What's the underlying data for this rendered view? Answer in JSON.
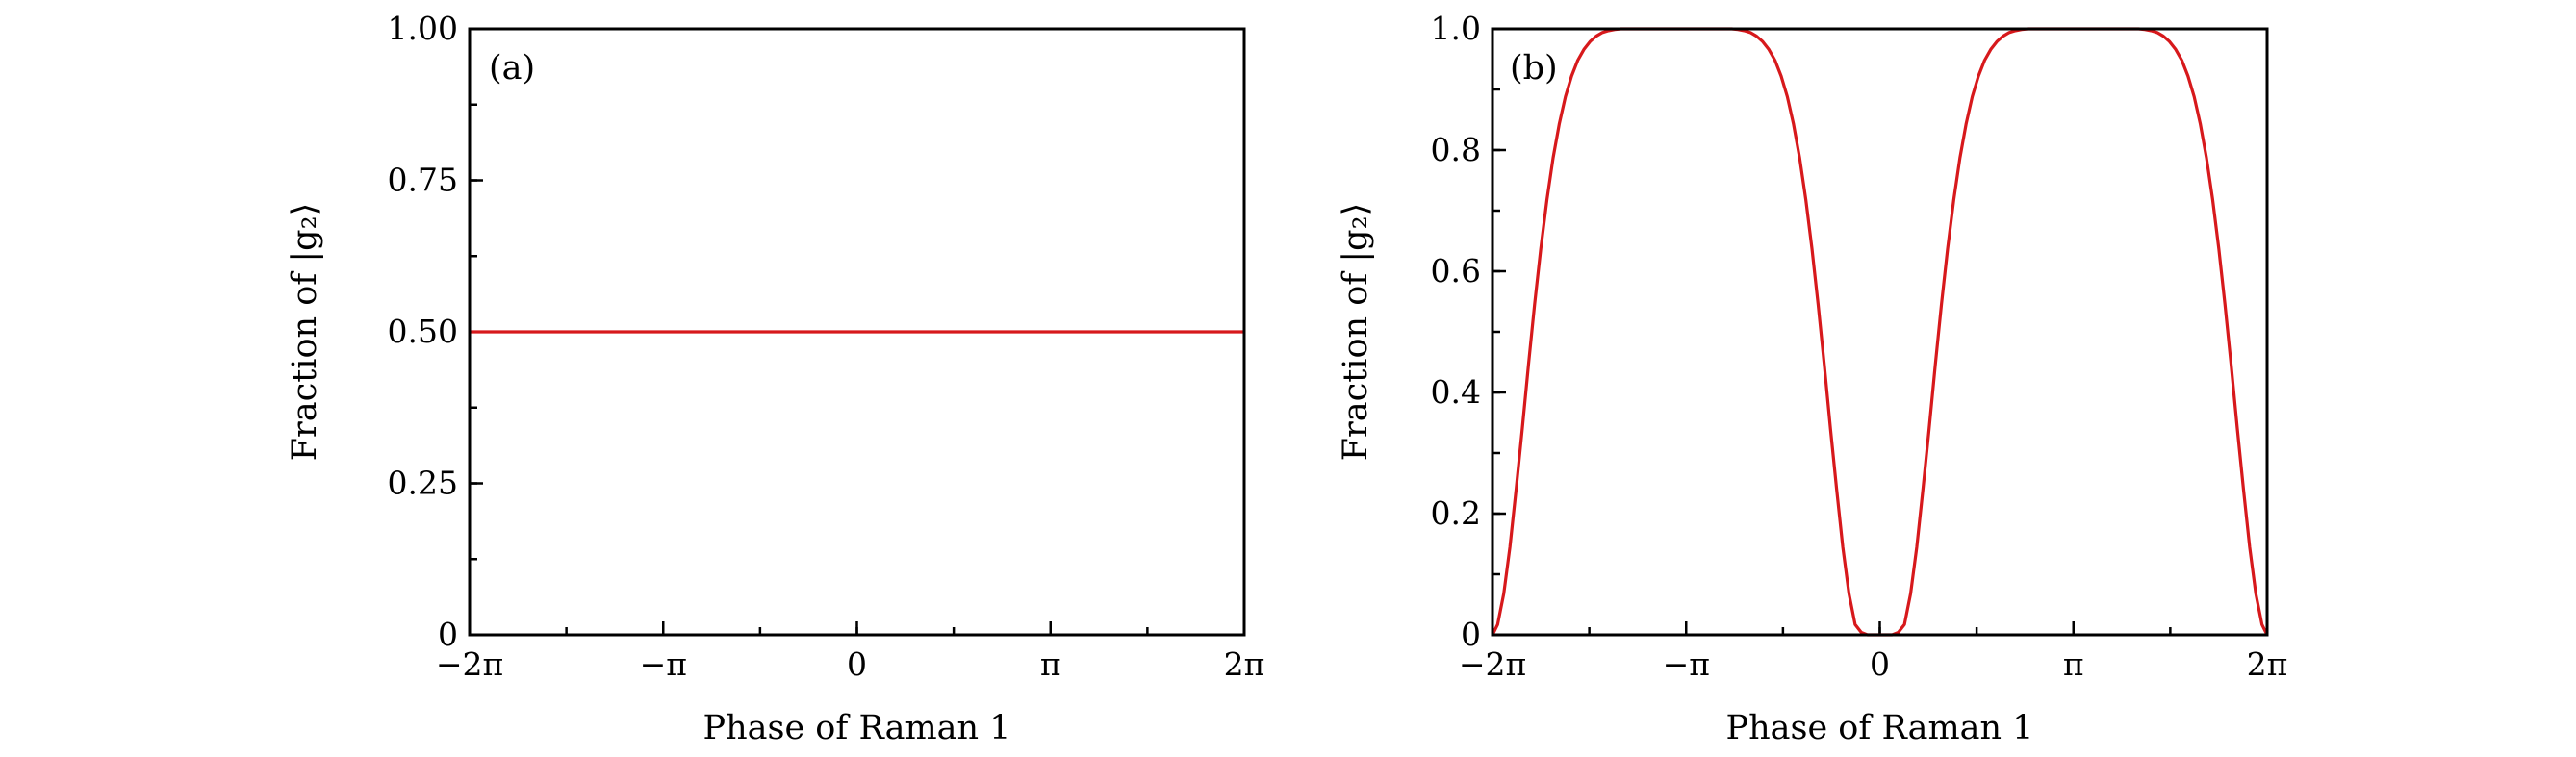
{
  "chart_data": [
    {
      "type": "line",
      "panel_label": "(a)",
      "xlabel": "Phase of Raman 1",
      "ylabel": "Fraction of |g₂⟩",
      "xlim": [
        -6.283185307,
        6.283185307
      ],
      "ylim": [
        0,
        1.0
      ],
      "x_ticks": [
        {
          "value": -6.283185307,
          "label": "−2π"
        },
        {
          "value": -3.141592654,
          "label": "−π"
        },
        {
          "value": 0,
          "label": "0"
        },
        {
          "value": 3.141592654,
          "label": "π"
        },
        {
          "value": 6.283185307,
          "label": "2π"
        }
      ],
      "x_minor_step": 1.570796327,
      "y_ticks": [
        {
          "value": 0,
          "label": "0"
        },
        {
          "value": 0.25,
          "label": "0.25"
        },
        {
          "value": 0.5,
          "label": "0.50"
        },
        {
          "value": 0.75,
          "label": "0.75"
        },
        {
          "value": 1.0,
          "label": "1.00"
        }
      ],
      "y_minor_step": 0.125,
      "color": "#d7191c",
      "series": [
        {
          "x": [
            -6.283185307,
            6.283185307
          ],
          "y": [
            0.5,
            0.5
          ]
        }
      ]
    },
    {
      "type": "line",
      "panel_label": "(b)",
      "xlabel": "Phase of Raman 1",
      "ylabel": "Fraction of |g₂⟩",
      "xlim": [
        -6.283185307,
        6.283185307
      ],
      "ylim": [
        0,
        1.0
      ],
      "x_ticks": [
        {
          "value": -6.283185307,
          "label": "−2π"
        },
        {
          "value": -3.141592654,
          "label": "−π"
        },
        {
          "value": 0,
          "label": "0"
        },
        {
          "value": 3.141592654,
          "label": "π"
        },
        {
          "value": 6.283185307,
          "label": "2π"
        }
      ],
      "x_minor_step": 1.570796327,
      "y_ticks": [
        {
          "value": 0,
          "label": "0"
        },
        {
          "value": 0.2,
          "label": "0.2"
        },
        {
          "value": 0.4,
          "label": "0.4"
        },
        {
          "value": 0.6,
          "label": "0.6"
        },
        {
          "value": 0.8,
          "label": "0.8"
        },
        {
          "value": 1.0,
          "label": "1.0"
        }
      ],
      "y_minor_step": 0.1,
      "color": "#d7191c",
      "series": [
        {
          "x": [
            -6.283,
            -6.2,
            -6.1,
            -6.0,
            -5.9,
            -5.8,
            -5.7,
            -5.6,
            -5.5,
            -5.4,
            -5.3,
            -5.2,
            -5.1,
            -5.0,
            -4.9,
            -4.8,
            -4.7,
            -4.6,
            -4.5,
            -4.4,
            -4.3,
            -4.2,
            -4.1,
            -4.0,
            -3.9,
            -3.8,
            -3.7,
            -3.6,
            -3.5,
            -3.4,
            -3.3,
            -3.2,
            -3.1416,
            -3.0,
            -2.9,
            -2.8,
            -2.7,
            -2.6,
            -2.5,
            -2.4,
            -2.3,
            -2.2,
            -2.1,
            -2.0,
            -1.9,
            -1.8,
            -1.7,
            -1.6,
            -1.5,
            -1.4,
            -1.3,
            -1.2,
            -1.1,
            -1.0,
            -0.9,
            -0.8,
            -0.7,
            -0.6,
            -0.5,
            -0.4,
            -0.3,
            -0.2,
            -0.1,
            0.0,
            0.1,
            0.2,
            0.3,
            0.4,
            0.5,
            0.6,
            0.7,
            0.8,
            0.9,
            1.0,
            1.1,
            1.2,
            1.3,
            1.4,
            1.5,
            1.6,
            1.7,
            1.8,
            1.9,
            2.0,
            2.1,
            2.2,
            2.3,
            2.4,
            2.5,
            2.6,
            2.7,
            2.8,
            2.9,
            3.0,
            3.1416,
            3.2,
            3.3,
            3.4,
            3.5,
            3.6,
            3.7,
            3.8,
            3.9,
            4.0,
            4.1,
            4.2,
            4.3,
            4.4,
            4.5,
            4.6,
            4.7,
            4.8,
            4.9,
            5.0,
            5.1,
            5.2,
            5.3,
            5.4,
            5.5,
            5.6,
            5.7,
            5.8,
            5.9,
            6.0,
            6.1,
            6.2,
            6.283
          ],
          "y": [
            0.0,
            0.017,
            0.068,
            0.145,
            0.24,
            0.34,
            0.445,
            0.545,
            0.637,
            0.718,
            0.787,
            0.843,
            0.888,
            0.922,
            0.948,
            0.966,
            0.979,
            0.988,
            0.994,
            0.997,
            0.999,
            1.0,
            1.0,
            1.0,
            1.0,
            1.0,
            1.0,
            1.0,
            1.0,
            1.0,
            1.0,
            1.0,
            1.0,
            1.0,
            1.0,
            1.0,
            1.0,
            1.0,
            1.0,
            1.0,
            0.999,
            0.997,
            0.994,
            0.988,
            0.979,
            0.966,
            0.948,
            0.922,
            0.888,
            0.843,
            0.787,
            0.718,
            0.637,
            0.545,
            0.445,
            0.34,
            0.24,
            0.145,
            0.068,
            0.017,
            0.004,
            0.0,
            0.0,
            0.0,
            0.0,
            0.0,
            0.004,
            0.017,
            0.068,
            0.145,
            0.24,
            0.34,
            0.445,
            0.545,
            0.637,
            0.718,
            0.787,
            0.843,
            0.888,
            0.922,
            0.948,
            0.966,
            0.979,
            0.988,
            0.994,
            0.997,
            0.999,
            1.0,
            1.0,
            1.0,
            1.0,
            1.0,
            1.0,
            1.0,
            1.0,
            1.0,
            1.0,
            1.0,
            1.0,
            1.0,
            1.0,
            1.0,
            1.0,
            1.0,
            1.0,
            1.0,
            0.999,
            0.997,
            0.994,
            0.988,
            0.979,
            0.966,
            0.948,
            0.922,
            0.888,
            0.843,
            0.787,
            0.718,
            0.637,
            0.545,
            0.445,
            0.34,
            0.24,
            0.145,
            0.068,
            0.017,
            0.0
          ]
        }
      ]
    }
  ]
}
